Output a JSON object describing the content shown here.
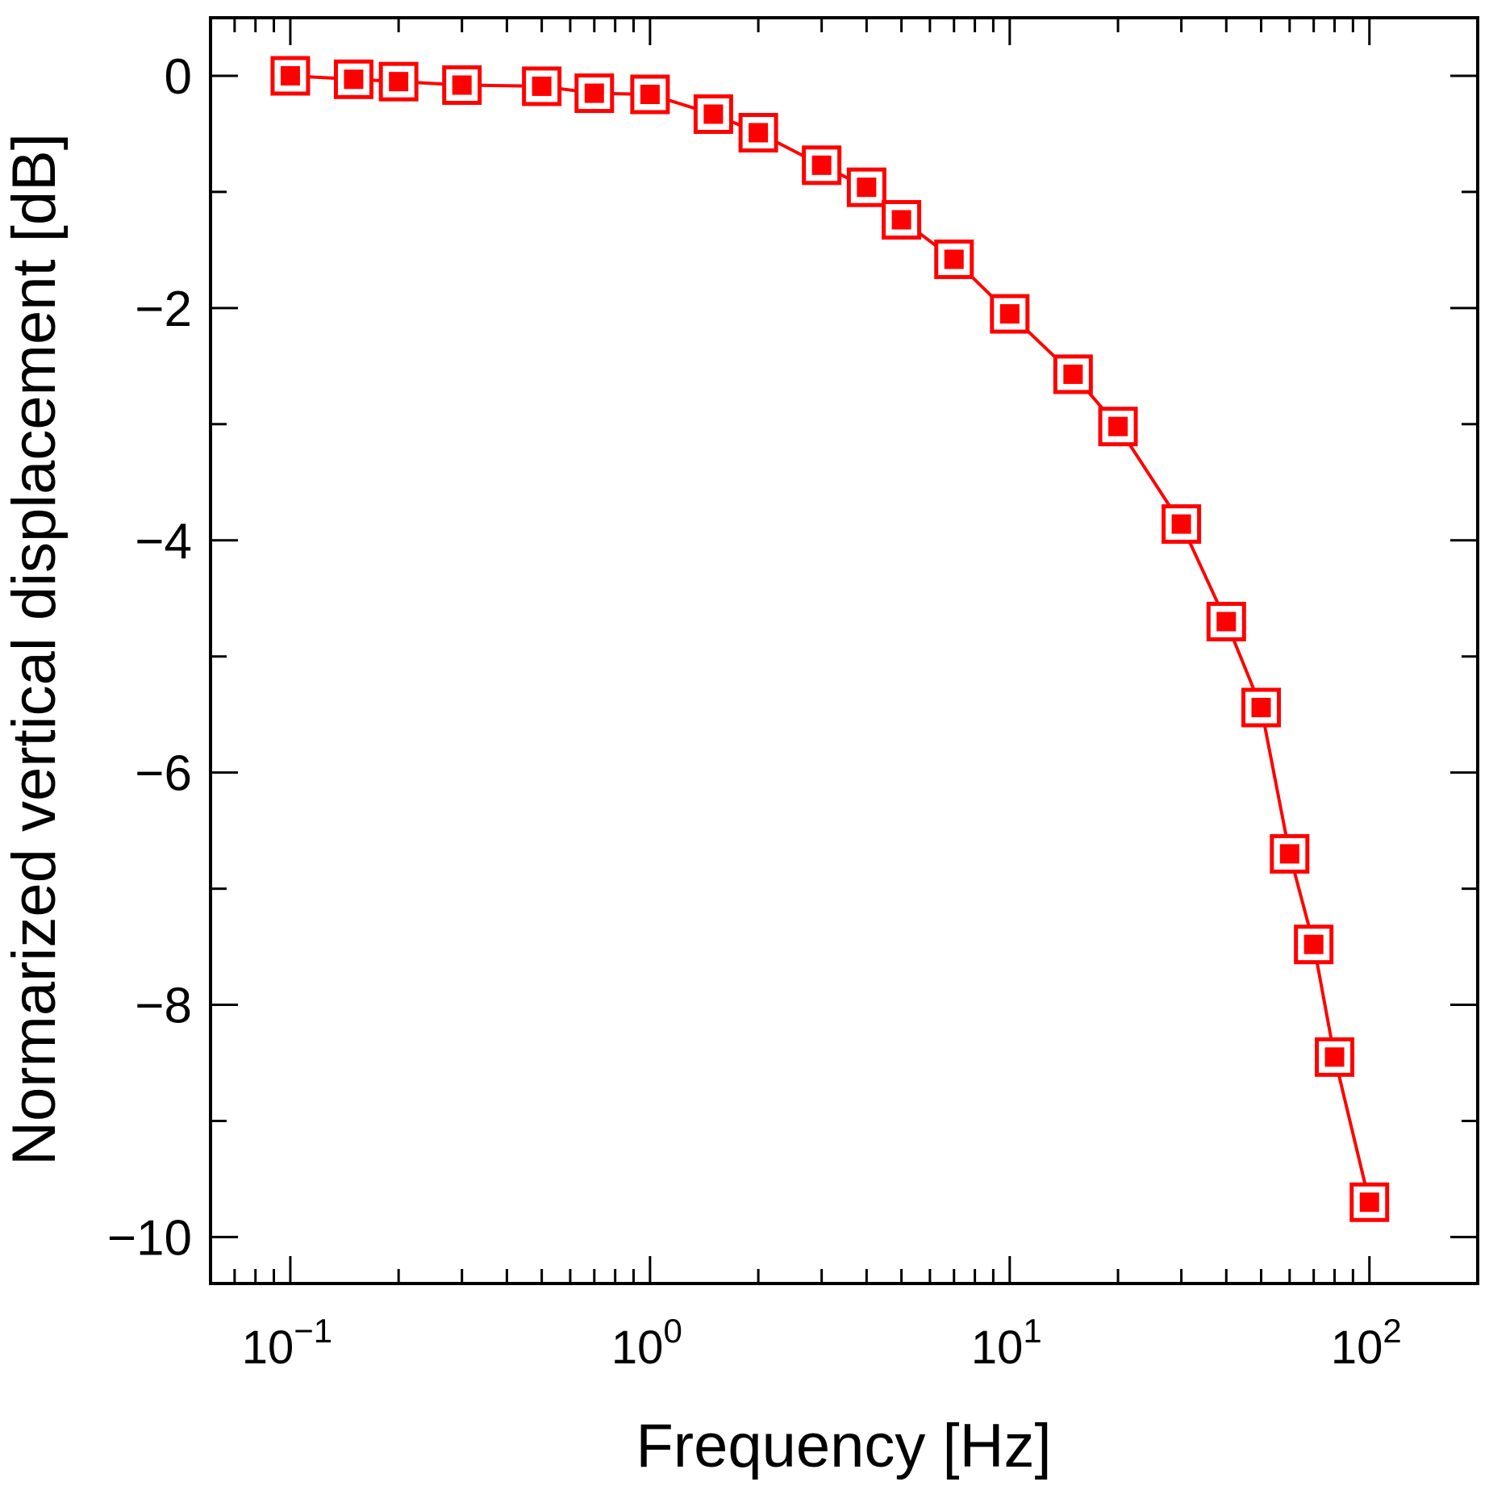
{
  "chart_data": {
    "type": "line",
    "title": "",
    "xlabel": "Frequency [Hz]",
    "ylabel": "Normarized vertical displacement [dB]",
    "xscale": "log",
    "xlim": [
      0.06,
      200
    ],
    "ylim": [
      -10.4,
      0.5
    ],
    "grid": false,
    "x_ticks": [
      {
        "value": 0.1,
        "base": "10",
        "exp": "−1"
      },
      {
        "value": 1,
        "base": "10",
        "exp": "0"
      },
      {
        "value": 10,
        "base": "10",
        "exp": "1"
      },
      {
        "value": 100,
        "base": "10",
        "exp": "2"
      }
    ],
    "y_ticks": [
      {
        "value": 0,
        "label": "0"
      },
      {
        "value": -2,
        "label": "−2"
      },
      {
        "value": -4,
        "label": "−4"
      },
      {
        "value": -6,
        "label": "−6"
      },
      {
        "value": -8,
        "label": "−8"
      },
      {
        "value": -10,
        "label": "−10"
      }
    ],
    "series": [
      {
        "name": "normalized vertical displacement",
        "color": "#ff0000",
        "marker": "square-in-square",
        "x": [
          0.1,
          0.15,
          0.2,
          0.3,
          0.5,
          0.7,
          1,
          1.5,
          2,
          3,
          4,
          5,
          7,
          10,
          15,
          20,
          30,
          40,
          50,
          60,
          70,
          80,
          100
        ],
        "y": [
          0,
          -0.03,
          -0.05,
          -0.08,
          -0.09,
          -0.15,
          -0.16,
          -0.33,
          -0.49,
          -0.77,
          -0.96,
          -1.24,
          -1.58,
          -2.05,
          -2.57,
          -3.02,
          -3.86,
          -4.7,
          -5.44,
          -6.7,
          -7.48,
          -8.45,
          -9.7
        ]
      }
    ]
  }
}
